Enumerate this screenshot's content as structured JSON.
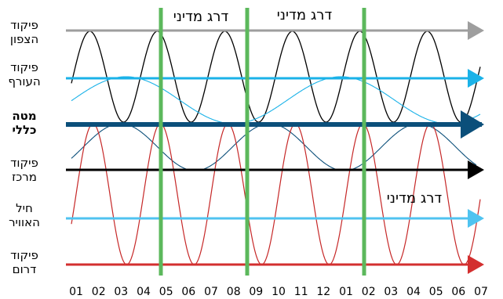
{
  "rows": [
    {
      "label_line1": "פיקוד",
      "label_line2": "הצפון",
      "color": "#9e9e9e",
      "bold": false
    },
    {
      "label_line1": "פיקוד",
      "label_line2": "העורף",
      "color": "#1ab2e8",
      "bold": false
    },
    {
      "label_line1": "מטה",
      "label_line2": "כללי",
      "color": "#0b4f7a",
      "bold": true
    },
    {
      "label_line1": "פיקוד",
      "label_line2": "מרכז",
      "color": "#000000",
      "bold": false
    },
    {
      "label_line1": "חיל",
      "label_line2": "האוויר",
      "color": "#4fc3f0",
      "bold": false
    },
    {
      "label_line1": "פיקוד",
      "label_line2": "דרום",
      "color": "#d32f2f",
      "bold": false
    }
  ],
  "headers": [
    "דרג מדיני",
    "דרג מדיני",
    "דרג מדיני"
  ],
  "x_ticks": [
    "01",
    "02",
    "03",
    "04",
    "05",
    "06",
    "07",
    "08",
    "09",
    "10",
    "11",
    "12",
    "01",
    "02",
    "03",
    "04",
    "05",
    "06",
    "07"
  ],
  "colors": {
    "divider": "#5cb85c",
    "wave_north": "#000000",
    "wave_home": "#1ab2e8",
    "wave_general": "#0b4f7a",
    "wave_south": "#c62828"
  }
}
